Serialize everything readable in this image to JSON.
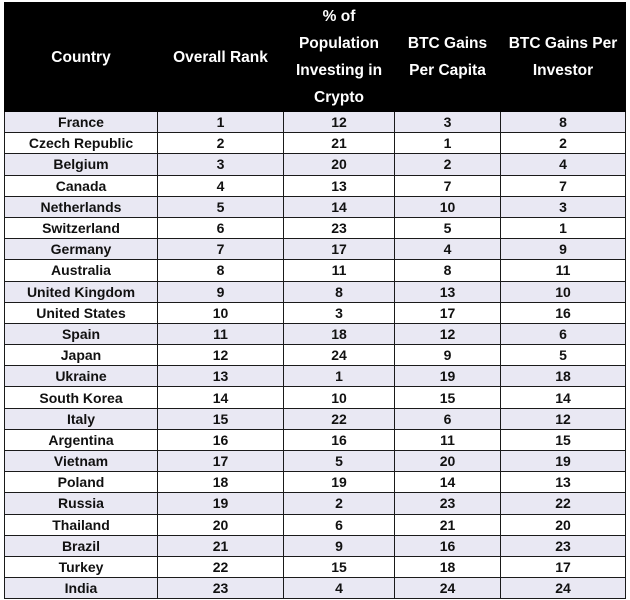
{
  "chart_data": {
    "type": "table",
    "columns": [
      "Country",
      "Overall Rank",
      "% of Population Investing in Crypto",
      "BTC Gains Per Capita",
      "BTC Gains Per Investor"
    ],
    "rows": [
      [
        "France",
        "1",
        "12",
        "3",
        "8"
      ],
      [
        "Czech Republic",
        "2",
        "21",
        "1",
        "2"
      ],
      [
        "Belgium",
        "3",
        "20",
        "2",
        "4"
      ],
      [
        "Canada",
        "4",
        "13",
        "7",
        "7"
      ],
      [
        "Netherlands",
        "5",
        "14",
        "10",
        "3"
      ],
      [
        "Switzerland",
        "6",
        "23",
        "5",
        "1"
      ],
      [
        "Germany",
        "7",
        "17",
        "4",
        "9"
      ],
      [
        "Australia",
        "8",
        "11",
        "8",
        "11"
      ],
      [
        "United Kingdom",
        "9",
        "8",
        "13",
        "10"
      ],
      [
        "United States",
        "10",
        "3",
        "17",
        "16"
      ],
      [
        "Spain",
        "11",
        "18",
        "12",
        "6"
      ],
      [
        "Japan",
        "12",
        "24",
        "9",
        "5"
      ],
      [
        "Ukraine",
        "13",
        "1",
        "19",
        "18"
      ],
      [
        "South Korea",
        "14",
        "10",
        "15",
        "14"
      ],
      [
        "Italy",
        "15",
        "22",
        "6",
        "12"
      ],
      [
        "Argentina",
        "16",
        "16",
        "11",
        "15"
      ],
      [
        "Vietnam",
        "17",
        "5",
        "20",
        "19"
      ],
      [
        "Poland",
        "18",
        "19",
        "14",
        "13"
      ],
      [
        "Russia",
        "19",
        "2",
        "23",
        "22"
      ],
      [
        "Thailand",
        "20",
        "6",
        "21",
        "20"
      ],
      [
        "Brazil",
        "21",
        "9",
        "16",
        "23"
      ],
      [
        "Turkey",
        "22",
        "15",
        "18",
        "17"
      ],
      [
        "India",
        "23",
        "4",
        "24",
        "24"
      ]
    ],
    "colors": {
      "header_background": "#000000",
      "header_text": "#ffffff",
      "band_row": "#e9e8f3",
      "plain_row": "#ffffff",
      "grid_line": "#1a1a1a"
    }
  }
}
